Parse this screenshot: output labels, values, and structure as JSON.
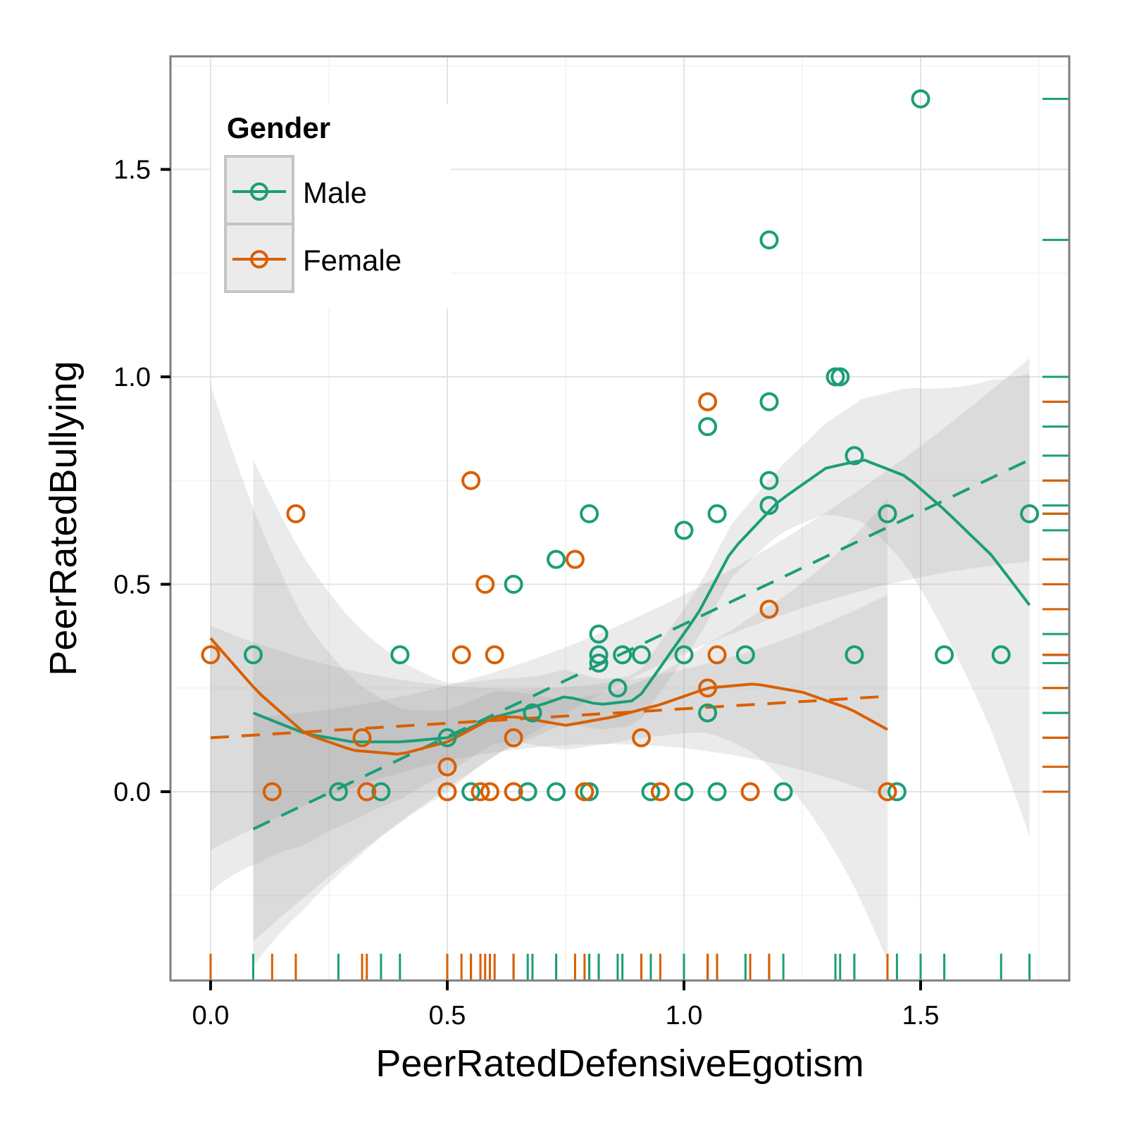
{
  "chart_data": {
    "type": "scatter",
    "title": "",
    "xlabel": "PeerRatedDefensiveEgotism",
    "ylabel": "PeerRatedBullying",
    "xlim": [
      -0.085,
      1.81
    ],
    "ylim": [
      -0.45,
      1.78
    ],
    "xticks": [
      0.0,
      0.5,
      1.0,
      1.5
    ],
    "xtick_labels": [
      "0.0",
      "0.5",
      "1.0",
      "1.5"
    ],
    "yticks": [
      0.0,
      0.5,
      1.0,
      1.5
    ],
    "ytick_labels": [
      "0.0",
      "0.5",
      "1.0",
      "1.5"
    ],
    "grid": true,
    "legend": {
      "title": "Gender",
      "placement": "top-left",
      "entries": [
        {
          "label": "Male",
          "color": "#1b9e77"
        },
        {
          "label": "Female",
          "color": "#d95f02"
        }
      ]
    },
    "series": [
      {
        "name": "Male",
        "color": "#1b9e77",
        "points": [
          [
            0.09,
            0.33
          ],
          [
            0.27,
            0.0
          ],
          [
            0.36,
            0.0
          ],
          [
            0.4,
            0.33
          ],
          [
            0.5,
            0.13
          ],
          [
            0.55,
            0.0
          ],
          [
            0.64,
            0.5
          ],
          [
            0.67,
            0.0
          ],
          [
            0.68,
            0.19
          ],
          [
            0.73,
            0.56
          ],
          [
            0.73,
            0.0
          ],
          [
            0.8,
            0.67
          ],
          [
            0.8,
            0.0
          ],
          [
            0.82,
            0.38
          ],
          [
            0.82,
            0.33
          ],
          [
            0.82,
            0.31
          ],
          [
            0.86,
            0.25
          ],
          [
            0.87,
            0.33
          ],
          [
            0.91,
            0.33
          ],
          [
            0.93,
            0.0
          ],
          [
            1.0,
            0.63
          ],
          [
            1.0,
            0.33
          ],
          [
            1.0,
            0.0
          ],
          [
            1.05,
            0.88
          ],
          [
            1.05,
            0.19
          ],
          [
            1.07,
            0.67
          ],
          [
            1.07,
            0.0
          ],
          [
            1.13,
            0.33
          ],
          [
            1.18,
            1.33
          ],
          [
            1.18,
            0.94
          ],
          [
            1.18,
            0.75
          ],
          [
            1.18,
            0.69
          ],
          [
            1.21,
            0.0
          ],
          [
            1.32,
            1.0
          ],
          [
            1.33,
            1.0
          ],
          [
            1.36,
            0.81
          ],
          [
            1.36,
            0.33
          ],
          [
            1.43,
            0.67
          ],
          [
            1.45,
            0.0
          ],
          [
            1.5,
            1.67
          ],
          [
            1.55,
            0.33
          ],
          [
            1.67,
            0.33
          ],
          [
            1.73,
            0.67
          ]
        ],
        "loess": [
          [
            0.09,
            0.19
          ],
          [
            0.2,
            0.14
          ],
          [
            0.3,
            0.12
          ],
          [
            0.4,
            0.12
          ],
          [
            0.5,
            0.13
          ],
          [
            0.6,
            0.18
          ],
          [
            0.7,
            0.21
          ],
          [
            0.75,
            0.23
          ],
          [
            0.82,
            0.21
          ],
          [
            0.9,
            0.22
          ],
          [
            0.95,
            0.3
          ],
          [
            1.03,
            0.43
          ],
          [
            1.1,
            0.58
          ],
          [
            1.2,
            0.7
          ],
          [
            1.3,
            0.78
          ],
          [
            1.38,
            0.8
          ],
          [
            1.47,
            0.76
          ],
          [
            1.55,
            0.68
          ],
          [
            1.65,
            0.57
          ],
          [
            1.73,
            0.45
          ]
        ],
        "lm": [
          [
            0.09,
            -0.09
          ],
          [
            1.73,
            0.8
          ]
        ]
      },
      {
        "name": "Female",
        "color": "#d95f02",
        "points": [
          [
            0.0,
            0.33
          ],
          [
            0.13,
            0.0
          ],
          [
            0.18,
            0.67
          ],
          [
            0.32,
            0.13
          ],
          [
            0.33,
            0.0
          ],
          [
            0.5,
            0.06
          ],
          [
            0.5,
            0.0
          ],
          [
            0.53,
            0.33
          ],
          [
            0.55,
            0.75
          ],
          [
            0.57,
            0.0
          ],
          [
            0.58,
            0.5
          ],
          [
            0.59,
            0.0
          ],
          [
            0.6,
            0.33
          ],
          [
            0.64,
            0.13
          ],
          [
            0.64,
            0.0
          ],
          [
            0.77,
            0.56
          ],
          [
            0.79,
            0.0
          ],
          [
            0.91,
            0.13
          ],
          [
            0.95,
            0.0
          ],
          [
            1.05,
            0.94
          ],
          [
            1.05,
            0.25
          ],
          [
            1.07,
            0.33
          ],
          [
            1.14,
            0.0
          ],
          [
            1.18,
            0.44
          ],
          [
            1.43,
            0.0
          ]
        ],
        "loess": [
          [
            0.0,
            0.37
          ],
          [
            0.1,
            0.24
          ],
          [
            0.2,
            0.14
          ],
          [
            0.3,
            0.1
          ],
          [
            0.4,
            0.09
          ],
          [
            0.5,
            0.12
          ],
          [
            0.6,
            0.18
          ],
          [
            0.65,
            0.18
          ],
          [
            0.75,
            0.16
          ],
          [
            0.85,
            0.18
          ],
          [
            0.95,
            0.21
          ],
          [
            1.05,
            0.25
          ],
          [
            1.15,
            0.26
          ],
          [
            1.25,
            0.24
          ],
          [
            1.35,
            0.2
          ],
          [
            1.43,
            0.15
          ]
        ],
        "lm": [
          [
            0.0,
            0.13
          ],
          [
            1.43,
            0.23
          ]
        ]
      }
    ]
  }
}
